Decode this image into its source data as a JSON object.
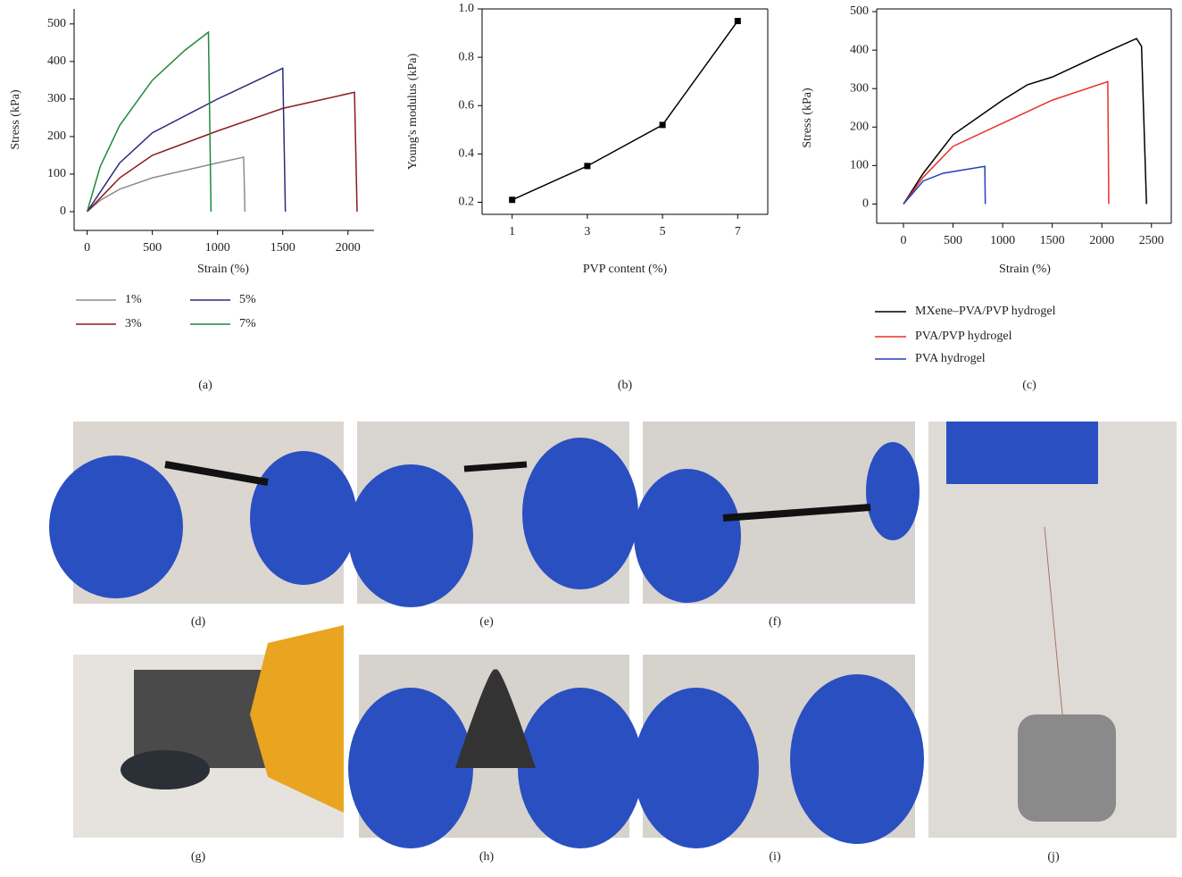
{
  "chart_data": [
    {
      "type": "line",
      "xlabel": "Strain (%)",
      "ylabel": "Stress (kPa)",
      "xlim": [
        -100,
        2200
      ],
      "ylim": [
        -50,
        540
      ],
      "xticks": [
        0,
        500,
        1000,
        1500,
        2000
      ],
      "yticks": [
        0,
        100,
        200,
        300,
        400,
        500
      ],
      "box": false,
      "legend": "below",
      "series": [
        {
          "name": "1%",
          "color": "#8c8c8c",
          "x": [
            0,
            100,
            250,
            500,
            750,
            1000,
            1200,
            1210
          ],
          "values": [
            0,
            30,
            60,
            90,
            110,
            130,
            145,
            0
          ]
        },
        {
          "name": "3%",
          "color": "#8b1a1a",
          "x": [
            0,
            250,
            500,
            1000,
            1500,
            2050,
            2070
          ],
          "values": [
            0,
            90,
            150,
            215,
            275,
            318,
            0
          ]
        },
        {
          "name": "5%",
          "color": "#2a2a80",
          "x": [
            0,
            250,
            500,
            1000,
            1500,
            1520
          ],
          "values": [
            0,
            130,
            210,
            300,
            382,
            0
          ]
        },
        {
          "name": "7%",
          "color": "#1f8a3a",
          "x": [
            0,
            100,
            250,
            500,
            750,
            930,
            950
          ],
          "values": [
            0,
            120,
            230,
            350,
            430,
            478,
            0
          ]
        }
      ]
    },
    {
      "type": "line",
      "xlabel": "PVP content (%)",
      "ylabel": "Young's modulus (kPa)",
      "xlim": [
        0.2,
        7.8
      ],
      "ylim": [
        0.15,
        1.0
      ],
      "xticks": [
        1,
        3,
        5,
        7
      ],
      "yticks": [
        0.2,
        0.4,
        0.6,
        0.8,
        {
          "value": 1.0,
          "label": "1.0"
        }
      ],
      "box": true,
      "marker": "square",
      "series": [
        {
          "color": "#000000",
          "x": [
            1,
            3,
            5,
            7
          ],
          "values": [
            0.21,
            0.35,
            0.52,
            0.95
          ]
        }
      ]
    },
    {
      "type": "line",
      "xlabel": "Strain (%)",
      "ylabel": "Stress (kPa)",
      "xlim": [
        -270,
        2700
      ],
      "ylim": [
        -50,
        507
      ],
      "xticks": [
        0,
        500,
        1000,
        1500,
        2000,
        2500
      ],
      "yticks": [
        0,
        100,
        200,
        300,
        400,
        500
      ],
      "box": true,
      "legend": "below",
      "series": [
        {
          "name": "MXene–PVA/PVP hydrogel",
          "color": "#000000",
          "x": [
            0,
            200,
            500,
            1000,
            1250,
            1500,
            2000,
            2350,
            2400,
            2450
          ],
          "values": [
            0,
            80,
            180,
            270,
            310,
            330,
            390,
            430,
            410,
            0
          ]
        },
        {
          "name": "PVA/PVP hydrogel",
          "color": "#e8322a",
          "x": [
            0,
            200,
            500,
            1000,
            1500,
            2060,
            2070
          ],
          "values": [
            0,
            70,
            150,
            210,
            270,
            318,
            0
          ]
        },
        {
          "name": "PVA hydrogel",
          "color": "#2040c0",
          "x": [
            0,
            200,
            400,
            820,
            825
          ],
          "values": [
            0,
            60,
            80,
            98,
            0
          ]
        }
      ]
    }
  ],
  "panels": {
    "labels": [
      "(a)",
      "(b)",
      "(c)",
      "(d)",
      "(e)",
      "(f)",
      "(g)",
      "(h)",
      "(i)",
      "(j)"
    ]
  }
}
